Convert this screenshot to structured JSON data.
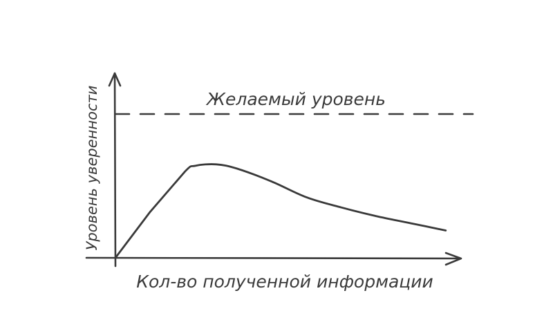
{
  "chart_data": {
    "type": "line",
    "xlabel": "Кол-во полученной информации",
    "ylabel": "Уровень уверенности",
    "xlim": [
      0,
      10
    ],
    "ylim": [
      0,
      10
    ],
    "grid": false,
    "reference_lines": [
      {
        "label": "Желаемый уровень",
        "y": 10,
        "style": "dashed"
      }
    ],
    "series": [
      {
        "x": [
          0,
          1,
          2,
          2.3,
          2.9,
          3.5,
          4.5,
          5.5,
          6.5,
          7.5,
          8.5,
          9.5
        ],
        "y": [
          0,
          3.2,
          6.0,
          6.4,
          6.5,
          6.2,
          5.3,
          4.2,
          3.5,
          2.9,
          2.4,
          1.9
        ]
      }
    ]
  }
}
